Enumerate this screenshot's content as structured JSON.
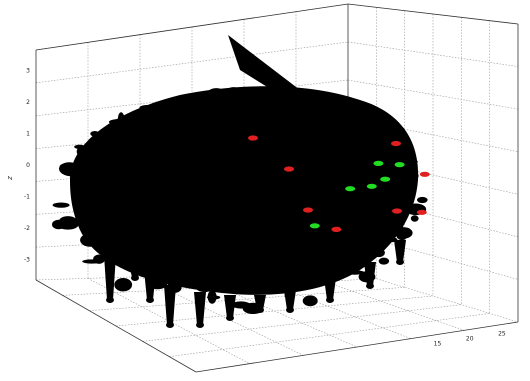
{
  "chart_data": {
    "type": "scatter",
    "dimensions": 3,
    "title": "",
    "z_axis": {
      "label": "z",
      "ticks": [
        "3",
        "2",
        "1",
        "0",
        "-1",
        "-2",
        "-3"
      ],
      "range": [
        -3.5,
        3.5
      ]
    },
    "x_axis": {
      "label": "",
      "ticks": [
        "",
        "",
        "",
        "",
        "",
        "",
        ""
      ]
    },
    "y_axis": {
      "label": "",
      "ticks": [
        "",
        "",
        "",
        "",
        "",
        "",
        "",
        "15",
        "20",
        "25"
      ]
    },
    "grid": true,
    "legend": "none",
    "series": [
      {
        "color": "#000000",
        "description_points": "dense cloud",
        "points": []
      },
      {
        "color": "#e02020",
        "points": [
          [
            0.45,
            0.55,
            1.0
          ],
          [
            0.85,
            0.5,
            1.0
          ],
          [
            0.55,
            0.55,
            0.0
          ],
          [
            0.93,
            0.5,
            0.0
          ],
          [
            0.6,
            0.6,
            -1.4
          ],
          [
            0.85,
            0.55,
            -1.3
          ],
          [
            0.92,
            0.53,
            -1.3
          ],
          [
            0.68,
            0.58,
            -2.0
          ]
        ]
      },
      {
        "color": "#22dd22",
        "points": [
          [
            0.8,
            0.52,
            0.3
          ],
          [
            0.86,
            0.5,
            0.3
          ],
          [
            0.82,
            0.5,
            -0.2
          ],
          [
            0.78,
            0.55,
            -0.5
          ],
          [
            0.72,
            0.55,
            -0.6
          ],
          [
            0.62,
            0.58,
            -1.9
          ]
        ]
      }
    ]
  }
}
